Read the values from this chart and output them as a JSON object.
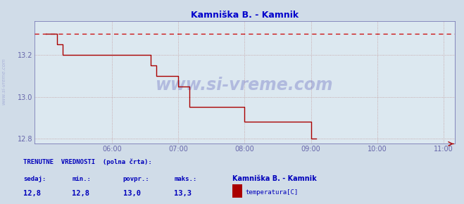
{
  "title": "Kamniška B. - Kamnik",
  "title_color": "#0000cc",
  "bg_color": "#d0dce8",
  "plot_bg_color": "#dce8f0",
  "grid_color": "#c09898",
  "axis_color": "#6666aa",
  "line_color": "#aa0000",
  "dashed_line_color": "#cc0000",
  "dashed_line_y": 13.3,
  "xlim_min": 4.833,
  "xlim_max": 11.17,
  "ylim_min": 12.775,
  "ylim_max": 13.36,
  "yticks": [
    12.8,
    13.0,
    13.2
  ],
  "xticks": [
    6,
    7,
    8,
    9,
    10,
    11
  ],
  "xtick_labels": [
    "06:00",
    "07:00",
    "08:00",
    "09:00",
    "10:00",
    "11:00"
  ],
  "watermark": "www.si-vreme.com",
  "watermark_color": "#3333aa",
  "watermark_alpha": 0.25,
  "footer_line1": "TRENUTNE  VREDNOSTI  (polna črta):",
  "footer_label_row": [
    "sedaj:",
    "min.:",
    "povpr.:",
    "maks.:"
  ],
  "footer_values": [
    "12,8",
    "12,8",
    "13,0",
    "13,3"
  ],
  "footer_station": "Kamniška B. - Kamnik",
  "footer_series": "temperatura[C]",
  "footer_color": "#0000bb",
  "sidebar_text": "www.si-vreme.com",
  "data_x": [
    5.0,
    5.083,
    5.167,
    5.25,
    5.333,
    5.5,
    5.583,
    5.667,
    5.75,
    5.833,
    5.917,
    6.0,
    6.083,
    6.167,
    6.25,
    6.333,
    6.417,
    6.5,
    6.583,
    6.667,
    6.75,
    6.833,
    6.917,
    7.0,
    7.083,
    7.167,
    7.333,
    7.5,
    7.583,
    7.667,
    7.75,
    7.833,
    7.917,
    8.0,
    8.083,
    8.25,
    8.333,
    8.417,
    8.5,
    8.583,
    8.667,
    8.75,
    8.833,
    8.917,
    9.0,
    9.083
  ],
  "data_y": [
    13.3,
    13.3,
    13.25,
    13.2,
    13.2,
    13.2,
    13.2,
    13.2,
    13.2,
    13.2,
    13.2,
    13.2,
    13.2,
    13.2,
    13.2,
    13.2,
    13.2,
    13.2,
    13.15,
    13.1,
    13.1,
    13.1,
    13.1,
    13.05,
    13.05,
    12.95,
    12.95,
    12.95,
    12.95,
    12.95,
    12.95,
    12.95,
    12.95,
    12.88,
    12.88,
    12.88,
    12.88,
    12.88,
    12.88,
    12.88,
    12.88,
    12.88,
    12.88,
    12.88,
    12.8,
    12.8
  ]
}
